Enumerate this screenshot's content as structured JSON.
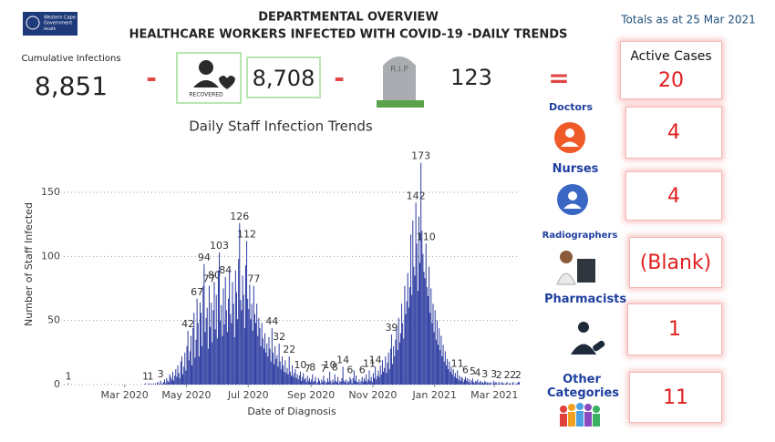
{
  "header": {
    "logo": [
      "Western Cape",
      "Government",
      "Health"
    ],
    "title": [
      "DEPARTMENTAL OVERVIEW",
      "HEALTHCARE WORKERS INFECTED WITH COVID-19 -DAILY TRENDS"
    ],
    "totals": "Totals as at 25 Mar 2021"
  },
  "kpis": {
    "cumulative_label": "Cumulative Infections",
    "cumulative": "8,851",
    "operators": [
      "-",
      "-",
      "="
    ],
    "recovered_label": "RECOVERED",
    "recovered": "8,708",
    "rip_label": "R.I.P",
    "deaths": "123"
  },
  "panel": {
    "active_label": "Active Cases",
    "active": "20",
    "items": [
      {
        "label": "Doctors",
        "value": "4"
      },
      {
        "label": "Nurses",
        "value": "4"
      },
      {
        "label": "Radiographers",
        "value": "(Blank)"
      },
      {
        "label": "Pharmacists",
        "value": "1"
      },
      {
        "label": "Other Categories",
        "value": "11"
      }
    ]
  },
  "chart_data": {
    "type": "bar",
    "title": "Daily Staff Infection Trends",
    "ylabel": "Number of Staff Infected",
    "xlabel": "Date of Diagnosis",
    "color": "#2b3aa0",
    "grid": true,
    "xlim": [
      0,
      450
    ],
    "xticks": [
      {
        "value": 60,
        "label": "Mar 2020"
      },
      {
        "value": 121,
        "label": "May 2020"
      },
      {
        "value": 182,
        "label": "Jul 2020"
      },
      {
        "value": 244,
        "label": "Sep 2020"
      },
      {
        "value": 305,
        "label": "Nov 2020"
      },
      {
        "value": 366,
        "label": "Jan 2021"
      },
      {
        "value": 425,
        "label": "Mar 2021"
      }
    ],
    "ylim": [
      0,
      182
    ],
    "yticks": [
      0,
      50,
      100,
      150
    ],
    "values": [
      0,
      0,
      0,
      0,
      1,
      0,
      0,
      0,
      0,
      0,
      0,
      0,
      0,
      0,
      0,
      0,
      0,
      0,
      0,
      0,
      0,
      0,
      0,
      0,
      0,
      0,
      0,
      0,
      0,
      0,
      0,
      0,
      0,
      0,
      0,
      0,
      0,
      0,
      0,
      0,
      0,
      0,
      0,
      0,
      0,
      0,
      0,
      0,
      0,
      0,
      0,
      0,
      0,
      0,
      0,
      0,
      0,
      0,
      0,
      0,
      0,
      0,
      0,
      0,
      0,
      0,
      0,
      0,
      0,
      0,
      0,
      0,
      0,
      0,
      0,
      0,
      0,
      0,
      0,
      0,
      1,
      0,
      0,
      1,
      0,
      1,
      0,
      0,
      1,
      0,
      1,
      0,
      2,
      1,
      0,
      3,
      1,
      0,
      2,
      4,
      1,
      5,
      3,
      2,
      8,
      6,
      4,
      10,
      3,
      7,
      12,
      6,
      15,
      9,
      5,
      18,
      22,
      8,
      14,
      25,
      11,
      30,
      42,
      19,
      26,
      38,
      15,
      44,
      56,
      21,
      35,
      67,
      48,
      22,
      64,
      56,
      30,
      77,
      94,
      41,
      52,
      60,
      28,
      77,
      45,
      64,
      33,
      58,
      80,
      43,
      70,
      36,
      89,
      103,
      50,
      62,
      38,
      75,
      47,
      84,
      58,
      41,
      67,
      90,
      55,
      48,
      80,
      63,
      37,
      89,
      72,
      51,
      98,
      126,
      66,
      58,
      85,
      70,
      44,
      93,
      112,
      67,
      59,
      78,
      51,
      63,
      42,
      77,
      55,
      48,
      63,
      38,
      52,
      44,
      30,
      48,
      36,
      28,
      40,
      25,
      32,
      22,
      37,
      28,
      18,
      44,
      25,
      16,
      30,
      20,
      23,
      14,
      32,
      18,
      12,
      22,
      15,
      10,
      19,
      9,
      13,
      8,
      22,
      10,
      7,
      15,
      6,
      9,
      12,
      5,
      8,
      4,
      7,
      10,
      3,
      6,
      9,
      4,
      5,
      2,
      7,
      3,
      5,
      2,
      4,
      8,
      2,
      3,
      6,
      1,
      2,
      5,
      3,
      1,
      4,
      2,
      7,
      3,
      1,
      2,
      5,
      2,
      10,
      3,
      1,
      4,
      2,
      8,
      3,
      2,
      6,
      1,
      3,
      2,
      5,
      14,
      3,
      2,
      4,
      1,
      3,
      2,
      6,
      4,
      1,
      5,
      11,
      3,
      7,
      2,
      2,
      4,
      1,
      3,
      6,
      2,
      5,
      3,
      8,
      2,
      4,
      11,
      3,
      6,
      2,
      9,
      5,
      14,
      4,
      7,
      11,
      6,
      15,
      8,
      19,
      10,
      13,
      22,
      9,
      17,
      25,
      12,
      28,
      39,
      16,
      30,
      22,
      35,
      44,
      27,
      52,
      33,
      40,
      63,
      48,
      36,
      77,
      55,
      65,
      87,
      60,
      76,
      117,
      70,
      128,
      92,
      85,
      142,
      110,
      73,
      131,
      95,
      173,
      120,
      102,
      88,
      83,
      110,
      76,
      69,
      92,
      56,
      75,
      48,
      63,
      41,
      58,
      35,
      50,
      31,
      44,
      27,
      38,
      22,
      31,
      18,
      26,
      15,
      20,
      12,
      18,
      10,
      14,
      8,
      12,
      6,
      9,
      5,
      11,
      4,
      7,
      3,
      6,
      5,
      2,
      4,
      6,
      3,
      5,
      2,
      4,
      1,
      3,
      5,
      2,
      1,
      3,
      2,
      4,
      1,
      2,
      3,
      1,
      2,
      1,
      3,
      2,
      1,
      2,
      1,
      1,
      2,
      0,
      1,
      3,
      1,
      2,
      1,
      0,
      2,
      1,
      0,
      2,
      1,
      1,
      0,
      1,
      2,
      0,
      1,
      1,
      0,
      1,
      2,
      0,
      1,
      0,
      1,
      2,
      2
    ]
  }
}
